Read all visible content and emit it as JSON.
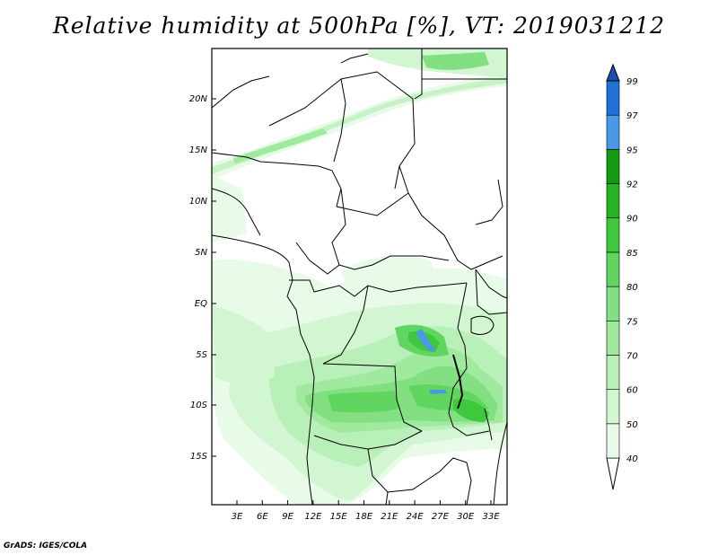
{
  "title": "Relative humidity at 500hPa [%], VT: 2019031212",
  "credit": "GrADS: IGES/COLA",
  "map": {
    "lon_ticks": [
      "3E",
      "6E",
      "9E",
      "12E",
      "15E",
      "18E",
      "21E",
      "24E",
      "27E",
      "30E",
      "33E"
    ],
    "lat_ticks": [
      "20N",
      "15N",
      "10N",
      "5N",
      "EQ",
      "5S",
      "10S",
      "15S"
    ]
  },
  "colorbar": {
    "levels": [
      "40",
      "50",
      "60",
      "70",
      "75",
      "80",
      "85",
      "90",
      "92",
      "95",
      "97",
      "99"
    ],
    "colors": [
      "#ffffff",
      "#e8fae8",
      "#d2f5d2",
      "#b9f0b9",
      "#a0eaa0",
      "#82e082",
      "#60d660",
      "#3ec83e",
      "#24b424",
      "#129a12",
      "#4a98e8",
      "#2070d8",
      "#1850b0"
    ]
  },
  "rh_palette": {
    "c50": "#e8fae8",
    "c60": "#d2f5d2",
    "c70": "#b9f0b9",
    "c75": "#a0eaa0",
    "c80": "#82e082",
    "c85": "#60d660",
    "c90": "#3ec83e",
    "c95": "#4a98e8"
  }
}
